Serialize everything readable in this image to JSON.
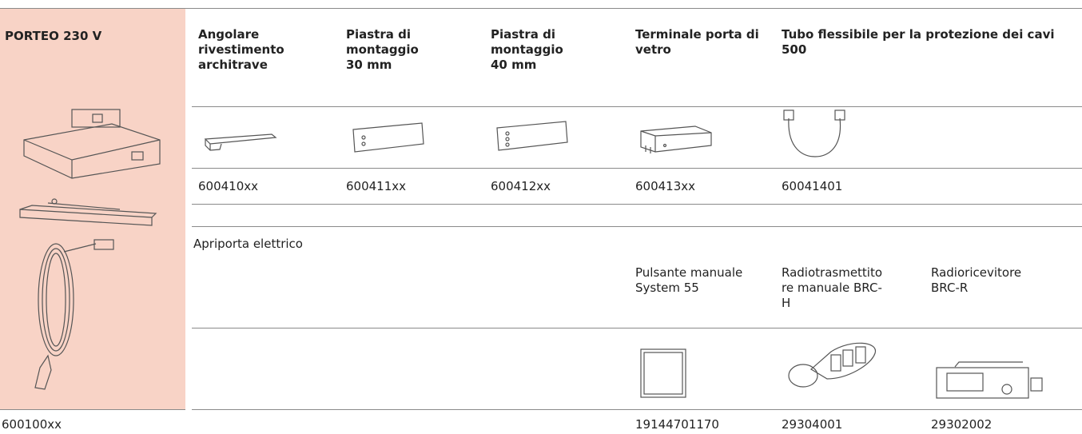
{
  "product": {
    "name": "PORTEO 230 V",
    "code": "600100xx"
  },
  "accessories": [
    {
      "name": "Angolare rivestimento architrave",
      "code": "600410xx"
    },
    {
      "name": "Piastra di montaggio 30 mm",
      "code": "600411xx"
    },
    {
      "name": "Piastra di montaggio 40 mm",
      "code": "600412xx"
    },
    {
      "name": "Terminale porta di vetro",
      "code": "600413xx"
    },
    {
      "name": "Tubo flessibile per la protezione dei cavi 500",
      "code": "60041401"
    }
  ],
  "section": {
    "title": "Apriporta elettrico",
    "items": [
      {
        "name": "Pulsante manuale System 55",
        "code": "19144701170"
      },
      {
        "name": "Radiotrasmettitore manuale BRC-H",
        "code": "29304001"
      },
      {
        "name": "Radioricevitore BRC-R",
        "code": "29302002"
      }
    ]
  }
}
